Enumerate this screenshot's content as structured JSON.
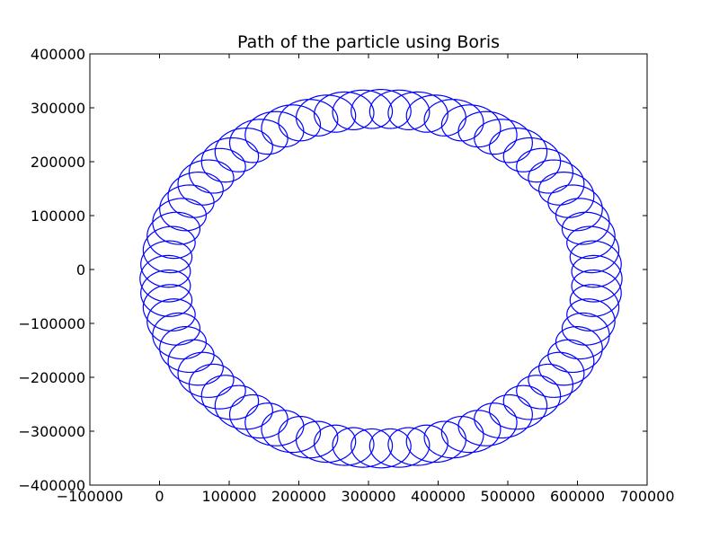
{
  "chart_data": {
    "type": "line",
    "title": "Path of the particle using Boris",
    "xlabel": "",
    "ylabel": "",
    "xlim": [
      -100000,
      700000
    ],
    "ylim": [
      -400000,
      400000
    ],
    "xticks": [
      -100000,
      0,
      100000,
      200000,
      300000,
      400000,
      500000,
      600000,
      700000
    ],
    "yticks": [
      -400000,
      -300000,
      -200000,
      -100000,
      0,
      100000,
      200000,
      300000,
      400000
    ],
    "xtick_labels": [
      "−100000",
      "0",
      "100000",
      "200000",
      "300000",
      "400000",
      "500000",
      "600000",
      "700000"
    ],
    "ytick_labels": [
      "−400000",
      "−300000",
      "−200000",
      "−100000",
      "0",
      "100000",
      "200000",
      "300000",
      "400000"
    ],
    "grid": false,
    "line_color": "#0000ff",
    "series": [
      {
        "path_model": "gyration loop around a slowly drifting guiding centre",
        "center": [
          318000,
          -17000
        ],
        "guiding_center_radius_x": 310000,
        "guiding_center_radius_y": 315000,
        "guiding_center_turns": 1.05,
        "gyration_radius": 36000,
        "gyrations_per_turn": 72,
        "start_point": [
          -4000,
          0
        ]
      }
    ]
  }
}
